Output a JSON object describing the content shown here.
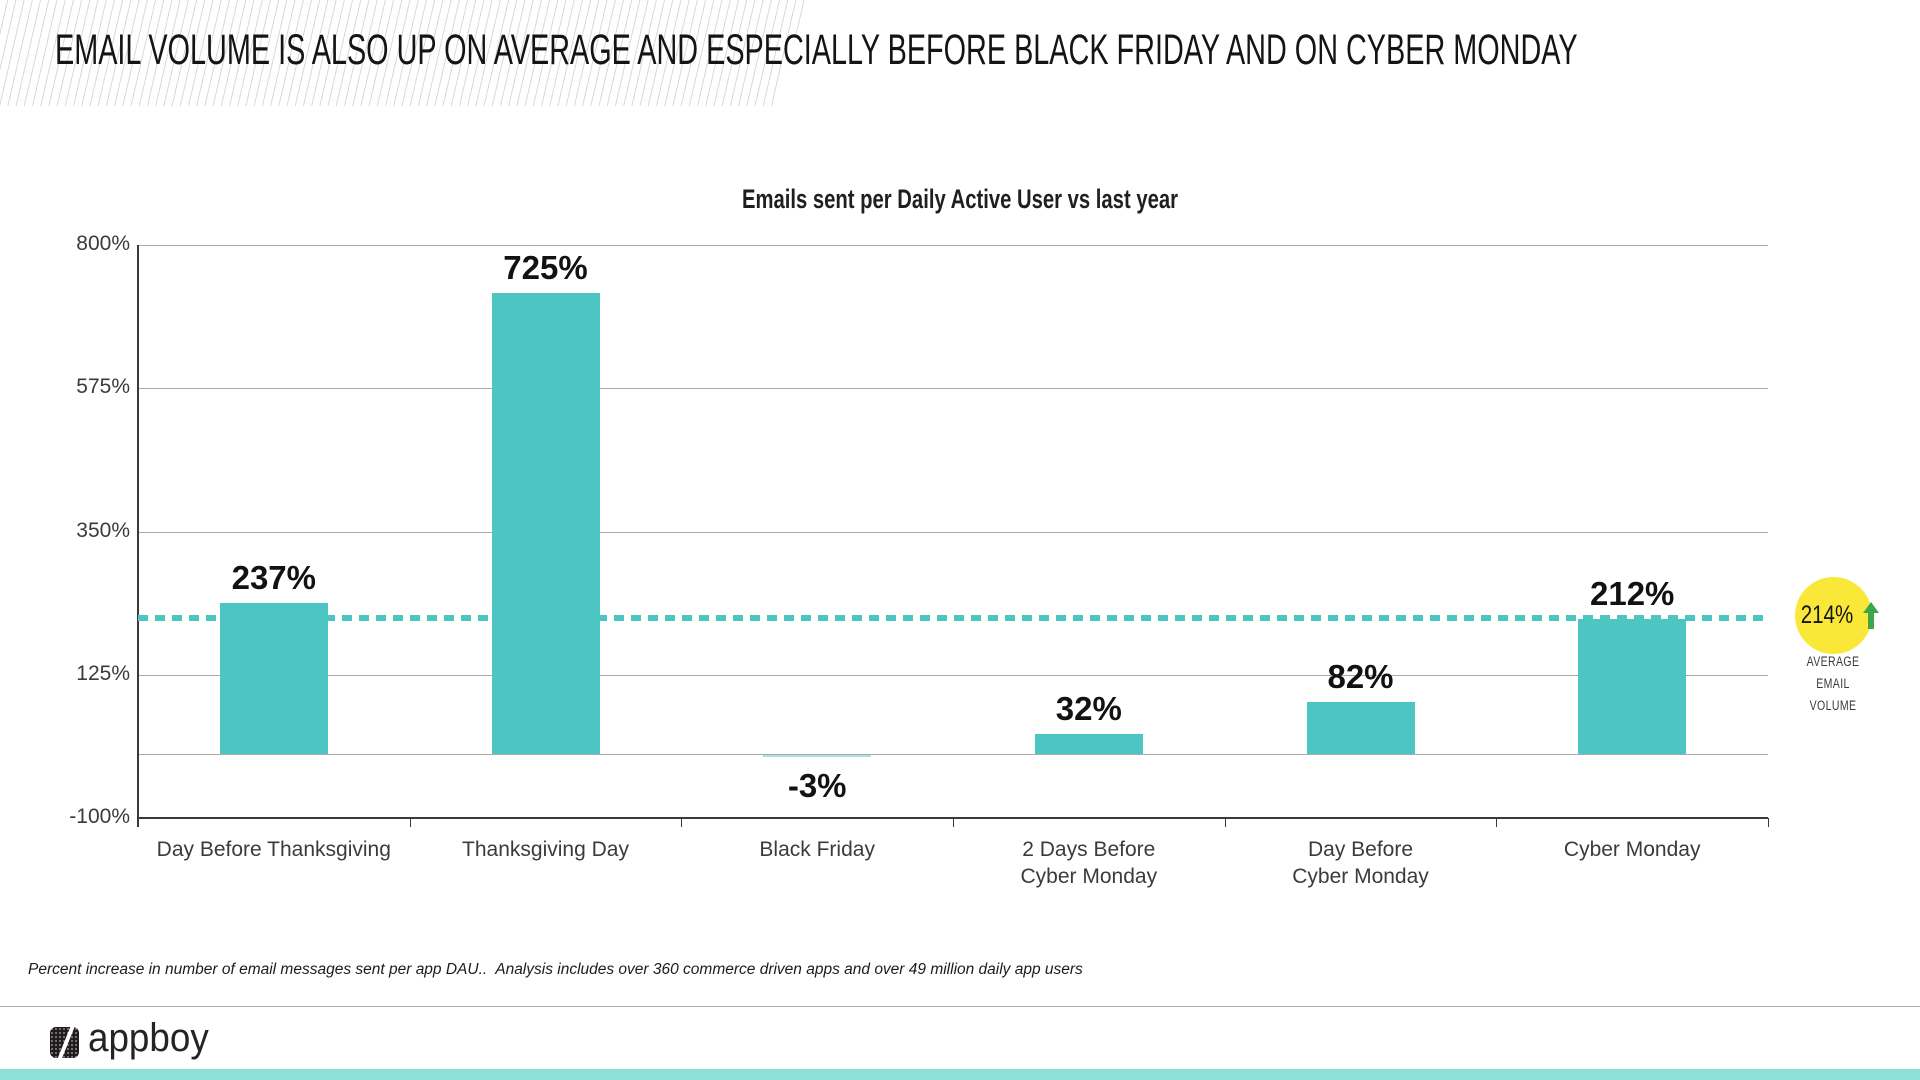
{
  "header": {
    "title": "EMAIL VOLUME IS ALSO UP ON AVERAGE AND ESPECIALLY BEFORE BLACK FRIDAY AND ON CYBER MONDAY"
  },
  "chart_data": {
    "type": "bar",
    "title": "Emails sent per Daily Active User vs last year",
    "categories": [
      "Day Before Thanksgiving",
      "Thanksgiving Day",
      "Black Friday",
      "2 Days Before\nCyber Monday",
      "Day Before\nCyber Monday",
      "Cyber Monday"
    ],
    "values": [
      237,
      725,
      -3,
      32,
      82,
      212
    ],
    "value_labels": [
      "237%",
      "725%",
      "-3%",
      "32%",
      "82%",
      "212%"
    ],
    "xlabel": "",
    "ylabel": "",
    "ylim": [
      -100,
      800
    ],
    "y_ticks": [
      800,
      575,
      350,
      125,
      -100
    ],
    "y_tick_labels": [
      "800%",
      "575%",
      "350%",
      "125%",
      "-100%"
    ],
    "grid": true,
    "legend": "none",
    "bar_color": "#4dc5c2",
    "average_line": {
      "value": 214,
      "style": "dotted",
      "color": "#4dc5c2"
    }
  },
  "annotation": {
    "badge_value": "214%",
    "arrow_direction": "up",
    "badge_color": "#f9e838",
    "arrow_color": "#3fa54a",
    "caption_lines": [
      "AVERAGE",
      "EMAIL",
      "VOLUME"
    ]
  },
  "footnote": "Percent increase in number of email messages sent per app DAU..  Analysis includes over 360 commerce driven apps and over 49 million daily app users",
  "footer": {
    "logo_text": "appboy",
    "accent_bar_color": "#8ce0d8"
  }
}
